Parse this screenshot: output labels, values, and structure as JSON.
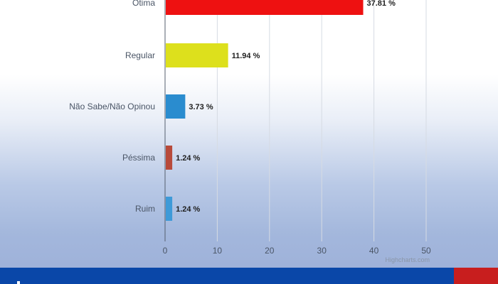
{
  "chart_data": {
    "type": "bar",
    "orientation": "horizontal",
    "categories": [
      "Ótima",
      "Regular",
      "Não Sabe/Não Opinou",
      "Péssima",
      "Ruim"
    ],
    "values": [
      37.81,
      11.94,
      3.73,
      1.24,
      1.24
    ],
    "data_labels": [
      "37.81 %",
      "11.94 %",
      "3.73 %",
      "1.24 %",
      "1.24 %"
    ],
    "colors": [
      "#ee1111",
      "#dde01c",
      "#2a8ccf",
      "#b84a3a",
      "#3e9ad8"
    ],
    "x_ticks": [
      0,
      10,
      20,
      30,
      40,
      50
    ],
    "xlim": [
      0,
      50
    ],
    "grid": true,
    "credits": "Highcharts.com"
  },
  "theme": {
    "bottom_bar": "#0a47a8",
    "accent_red": "#c81e1e"
  }
}
